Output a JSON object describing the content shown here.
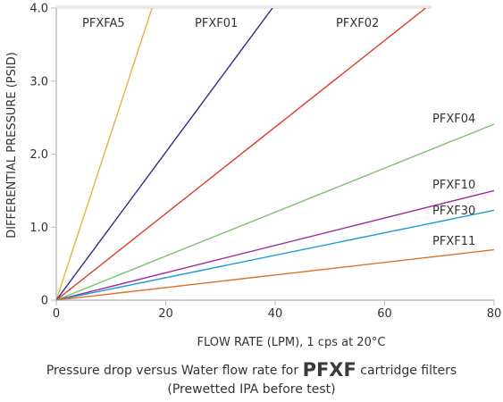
{
  "chart_data": {
    "type": "line",
    "xlabel": "FLOW RATE (LPM), 1 cps at 20°C",
    "ylabel": "DIFFERENTIAL PRESSURE (PSID)",
    "xlim": [
      0,
      80
    ],
    "ylim": [
      0,
      4.0
    ],
    "x_ticks": [
      0,
      20,
      40,
      60,
      80
    ],
    "x_tick_labels": [
      "0",
      "20",
      "40",
      "60",
      "80"
    ],
    "y_ticks": [
      0,
      1.0,
      2.0,
      3.0,
      4.0
    ],
    "y_tick_labels": [
      "0",
      "1.0",
      "2.0",
      "3.0",
      "4.0"
    ],
    "grid": false,
    "series": [
      {
        "name": "PFXFA5",
        "color": "#e2b53c",
        "x": [
          0,
          17.5
        ],
        "y": [
          0,
          4.0
        ]
      },
      {
        "name": "PFXF01",
        "color": "#2a2a8c",
        "x": [
          0,
          39.5
        ],
        "y": [
          0,
          4.0
        ]
      },
      {
        "name": "PFXF02",
        "color": "#e03a2a",
        "x": [
          0,
          67.5
        ],
        "y": [
          0,
          4.0
        ]
      },
      {
        "name": "PFXF04",
        "color": "#7cc06a",
        "x": [
          0,
          80
        ],
        "y": [
          0,
          2.41
        ]
      },
      {
        "name": "PFXF10",
        "color": "#9b2b9a",
        "x": [
          0,
          80
        ],
        "y": [
          0,
          1.5
        ]
      },
      {
        "name": "PFXF30",
        "color": "#1a9bd8",
        "x": [
          0,
          80
        ],
        "y": [
          0,
          1.23
        ]
      },
      {
        "name": "PFXF11",
        "color": "#e2702a",
        "x": [
          0,
          80
        ],
        "y": [
          0,
          0.69
        ]
      }
    ]
  },
  "caption": {
    "prefix": "Pressure drop versus Water flow rate for ",
    "emphasis": "PFXF",
    "suffix": " cartridge filters",
    "line2": "(Prewetted IPA before test)"
  }
}
